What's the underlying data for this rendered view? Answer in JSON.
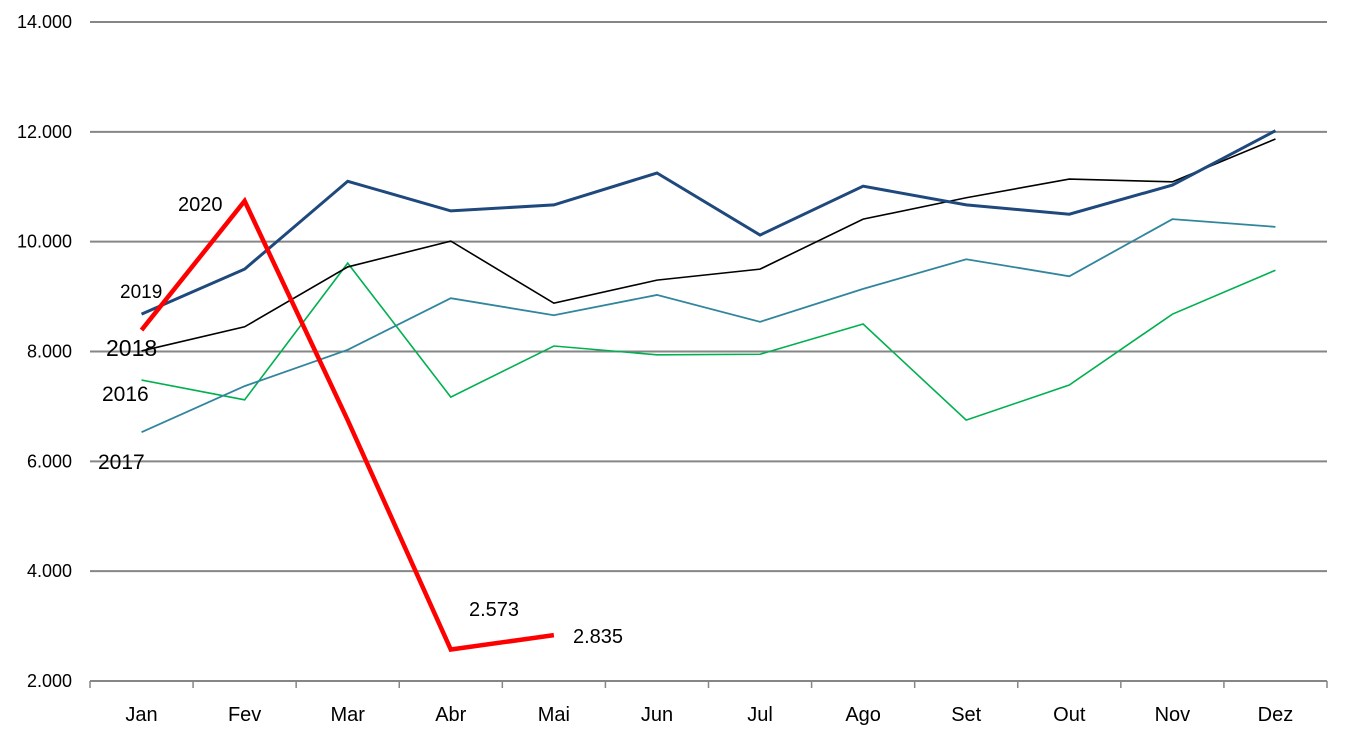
{
  "chart_data": {
    "type": "line",
    "title": "",
    "xlabel": "",
    "ylabel": "",
    "categories": [
      "Jan",
      "Fev",
      "Mar",
      "Abr",
      "Mai",
      "Jun",
      "Jul",
      "Ago",
      "Set",
      "Out",
      "Nov",
      "Dez"
    ],
    "ylim": [
      2000,
      14000
    ],
    "yticks": [
      2000,
      4000,
      6000,
      8000,
      10000,
      12000,
      14000
    ],
    "ytick_labels": [
      "2.000",
      "4.000",
      "6.000",
      "8.000",
      "10.000",
      "12.000",
      "14.000"
    ],
    "grid": true,
    "legend": "none (series labelled inline)",
    "series": [
      {
        "name": "2016",
        "color": "#00B050",
        "values": [
          7480,
          7120,
          9610,
          7170,
          8100,
          7940,
          7950,
          8500,
          6750,
          7390,
          8680,
          9480
        ]
      },
      {
        "name": "2017",
        "color": "#31859C",
        "values": [
          6530,
          7370,
          8030,
          8970,
          8660,
          9030,
          8540,
          9140,
          9680,
          9370,
          10410,
          10270
        ]
      },
      {
        "name": "2018",
        "color": "#000000",
        "values": [
          8010,
          8450,
          9540,
          10010,
          8880,
          9300,
          9500,
          10410,
          10800,
          11140,
          11090,
          11870
        ]
      },
      {
        "name": "2019",
        "color": "#1F497D",
        "values": [
          8680,
          9500,
          11100,
          10560,
          10670,
          11250,
          10120,
          11010,
          10670,
          10500,
          11030,
          12020
        ]
      },
      {
        "name": "2020",
        "color": "#FF0000",
        "values": [
          8390,
          10740,
          6750,
          2573,
          2835,
          null,
          null,
          null,
          null,
          null,
          null,
          null
        ]
      }
    ],
    "data_labels": [
      {
        "series": "2020",
        "category": "Abr",
        "text": "2.573"
      },
      {
        "series": "2020",
        "category": "Mai",
        "text": "2.835"
      }
    ]
  }
}
